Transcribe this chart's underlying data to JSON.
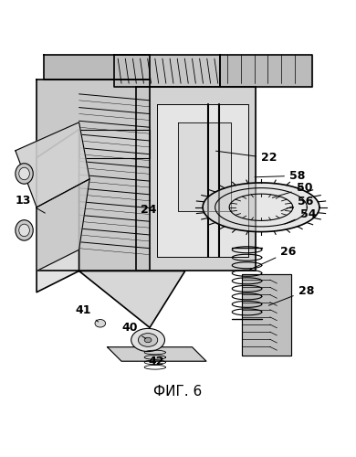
{
  "caption": "ФИГ. 6",
  "background_color": "#ffffff",
  "fig_width": 3.9,
  "fig_height": 5.0,
  "dpi": 100,
  "line_color": "#000000",
  "line_width": 0.8
}
